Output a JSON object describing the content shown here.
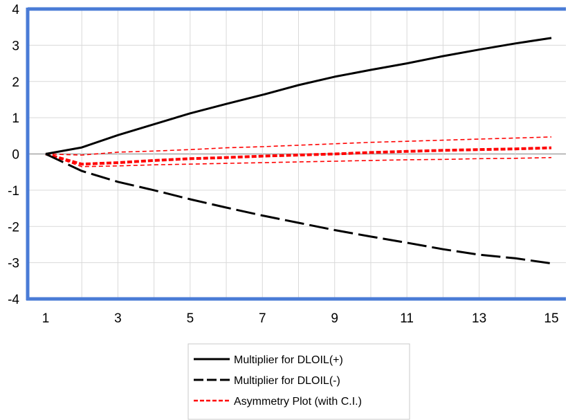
{
  "chart_data": {
    "type": "line",
    "x": [
      1,
      2,
      3,
      4,
      5,
      6,
      7,
      8,
      9,
      10,
      11,
      12,
      13,
      14,
      15
    ],
    "x_ticks": [
      "1",
      "3",
      "5",
      "7",
      "9",
      "11",
      "13",
      "15"
    ],
    "y_ticks": [
      "4",
      "3",
      "2",
      "1",
      "0",
      "-1",
      "-2",
      "-3",
      "-4"
    ],
    "xlim": [
      1,
      15
    ],
    "ylim": [
      -4,
      4
    ],
    "grid": true,
    "legend_position": "bottom-center",
    "colors": {
      "frame": "#4a7bd6",
      "grid": "#d9d9d9",
      "zero_line": "#a6a6a6",
      "positive": "#000000",
      "negative": "#000000",
      "asymmetry": "#ff0000",
      "ci": "#ff0000"
    },
    "series": [
      {
        "name": "Multiplier for DLOIL(+)",
        "style": "solid",
        "values": [
          0.0,
          0.18,
          0.52,
          0.82,
          1.12,
          1.38,
          1.63,
          1.9,
          2.13,
          2.32,
          2.5,
          2.7,
          2.88,
          3.05,
          3.2
        ]
      },
      {
        "name": "Multiplier for DLOIL(-)",
        "style": "long-dash",
        "values": [
          0.0,
          -0.47,
          -0.77,
          -1.0,
          -1.25,
          -1.48,
          -1.7,
          -1.9,
          -2.1,
          -2.28,
          -2.45,
          -2.63,
          -2.78,
          -2.88,
          -3.02
        ]
      },
      {
        "name": "Asymmetry Plot (with C.I.)",
        "style": "short-dash",
        "values": [
          0.0,
          -0.28,
          -0.24,
          -0.18,
          -0.13,
          -0.1,
          -0.06,
          -0.03,
          0.0,
          0.04,
          0.07,
          0.1,
          0.12,
          0.14,
          0.17
        ],
        "upper": [
          0.0,
          -0.03,
          0.05,
          0.08,
          0.12,
          0.17,
          0.2,
          0.24,
          0.28,
          0.32,
          0.35,
          0.38,
          0.41,
          0.44,
          0.47
        ],
        "lower": [
          0.0,
          -0.35,
          -0.33,
          -0.3,
          -0.28,
          -0.26,
          -0.24,
          -0.22,
          -0.2,
          -0.18,
          -0.16,
          -0.15,
          -0.13,
          -0.12,
          -0.1
        ]
      }
    ]
  }
}
